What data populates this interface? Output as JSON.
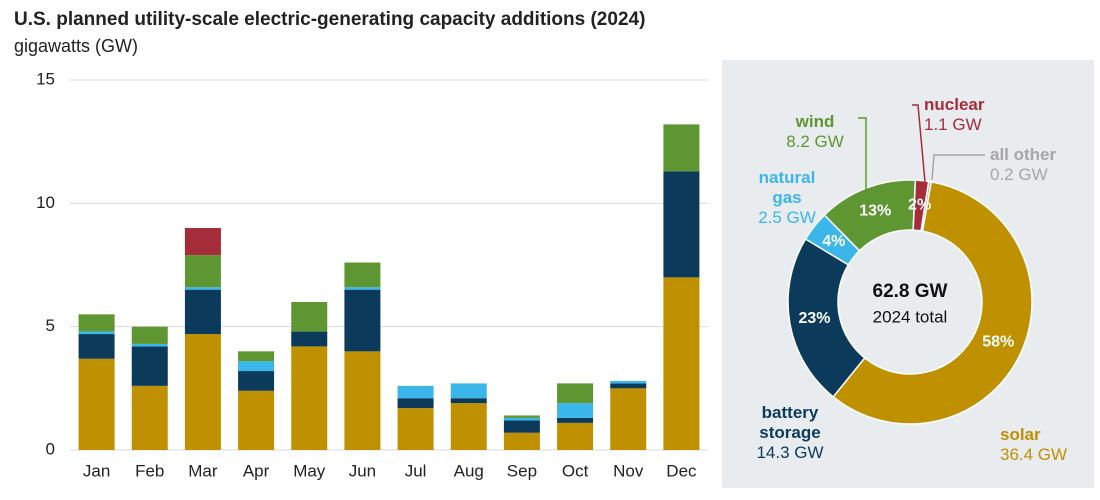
{
  "chart_data": [
    {
      "type": "bar",
      "title": "U.S. planned utility-scale electric-generating capacity additions (2024)",
      "subtitle": "gigawatts (GW)",
      "stacked": true,
      "categories": [
        "Jan",
        "Feb",
        "Mar",
        "Apr",
        "May",
        "Jun",
        "Jul",
        "Aug",
        "Sep",
        "Oct",
        "Nov",
        "Dec"
      ],
      "series": [
        {
          "color": "#bf9000",
          "values": [
            3.7,
            2.6,
            4.7,
            2.4,
            4.2,
            4.0,
            1.7,
            1.9,
            0.7,
            1.1,
            2.5,
            7.0
          ]
        },
        {
          "color": "#0c3a5b",
          "values": [
            1.0,
            1.6,
            1.8,
            0.8,
            0.6,
            2.5,
            0.4,
            0.2,
            0.5,
            0.2,
            0.2,
            4.3
          ]
        },
        {
          "color": "#3bb6eb",
          "values": [
            0.1,
            0.1,
            0.1,
            0.4,
            0,
            0.1,
            0.5,
            0.6,
            0.1,
            0.6,
            0.1,
            0
          ]
        },
        {
          "color": "#5e9732",
          "values": [
            0.7,
            0.7,
            1.3,
            0.4,
            1.2,
            1.0,
            0,
            0,
            0.1,
            0.8,
            0,
            1.9
          ]
        },
        {
          "color": "#a52d3a",
          "values": [
            0,
            0,
            1.1,
            0,
            0,
            0,
            0,
            0,
            0,
            0,
            0,
            0
          ]
        }
      ],
      "ylim": [
        0,
        15
      ],
      "yticks": [
        0,
        5,
        10,
        15
      ],
      "grid": true
    },
    {
      "type": "donut",
      "categories": [
        "solar",
        "battery storage",
        "natural gas",
        "wind",
        "nuclear",
        "all other"
      ],
      "values": [
        36.4,
        14.3,
        2.5,
        8.2,
        1.1,
        0.2
      ],
      "value_labels": [
        "36.4 GW",
        "14.3 GW",
        "2.5 GW",
        "8.2 GW",
        "1.1 GW",
        "0.2 GW"
      ],
      "percent_labels": [
        "58%",
        "23%",
        "4%",
        "13%",
        "2%",
        null
      ],
      "colors": [
        "#bf9000",
        "#0c3a5b",
        "#3bb6eb",
        "#5e9732",
        "#a52d3a",
        "#a6a6a6"
      ],
      "center_label": "62.8 GW",
      "center_sublabel": "2024 total"
    }
  ]
}
